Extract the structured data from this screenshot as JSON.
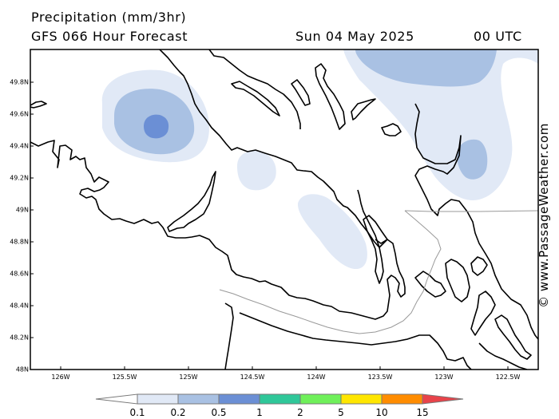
{
  "header": {
    "title": "Precipitation (mm/3hr)",
    "subtitle": "GFS 066 Hour Forecast",
    "date": "Sun 04 May 2025",
    "time": "00 UTC"
  },
  "credit": "© www.PassageWeather.com",
  "map": {
    "lat_labels": [
      "49.8N",
      "49.6N",
      "49.4N",
      "49.2N",
      "49N",
      "48.8N",
      "48.6N",
      "48.4N",
      "48.2N",
      "48N"
    ],
    "lon_labels": [
      "126W",
      "125.5W",
      "125W",
      "124.5W",
      "124W",
      "123.5W",
      "123W",
      "122.5W"
    ],
    "lat_range": [
      48.0,
      50.0
    ],
    "lon_range": [
      -126.2,
      -122.3
    ]
  },
  "legend": {
    "labels": [
      "0.1",
      "0.2",
      "0.5",
      "1",
      "2",
      "5",
      "10",
      "15"
    ],
    "colors": [
      "#ffffff",
      "#e1e9f6",
      "#a9c1e3",
      "#6b8fd5",
      "#2fc799",
      "#6ff05a",
      "#ffe600",
      "#ff8c00",
      "#e8434a"
    ]
  }
}
